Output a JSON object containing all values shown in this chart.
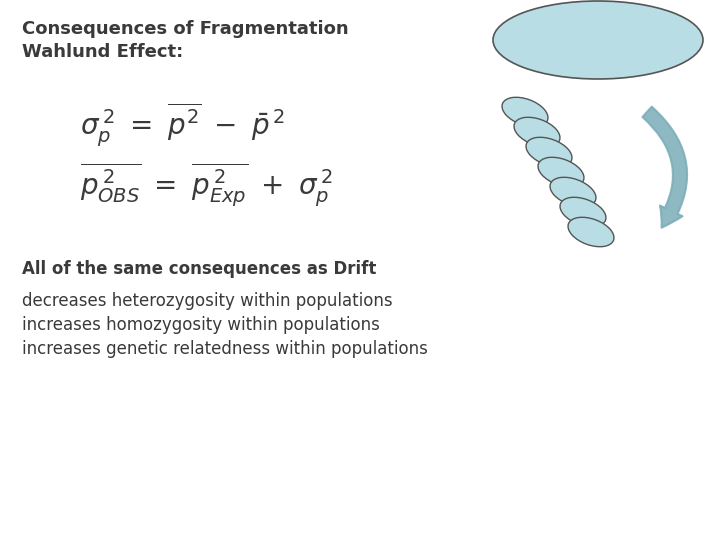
{
  "title": "Consequences of Fragmentation",
  "subtitle": "Wahlund Effect:",
  "consequence_header": "All of the same consequences as Drift",
  "bullets": [
    "decreases heterozygosity within populations",
    "increases homozygosity within populations",
    "increases genetic relatedness within populations"
  ],
  "bg_color": "#ffffff",
  "text_color": "#3a3a3a",
  "title_fontsize": 13,
  "subtitle_fontsize": 13,
  "eq_fontsize": 20,
  "body_fontsize": 12,
  "header_fontsize": 12,
  "ellipse_large_color": "#b8dde4",
  "ellipse_small_color": "#b8dde4",
  "ellipse_edge_color": "#555555",
  "arrow_color": "#7aacb8"
}
